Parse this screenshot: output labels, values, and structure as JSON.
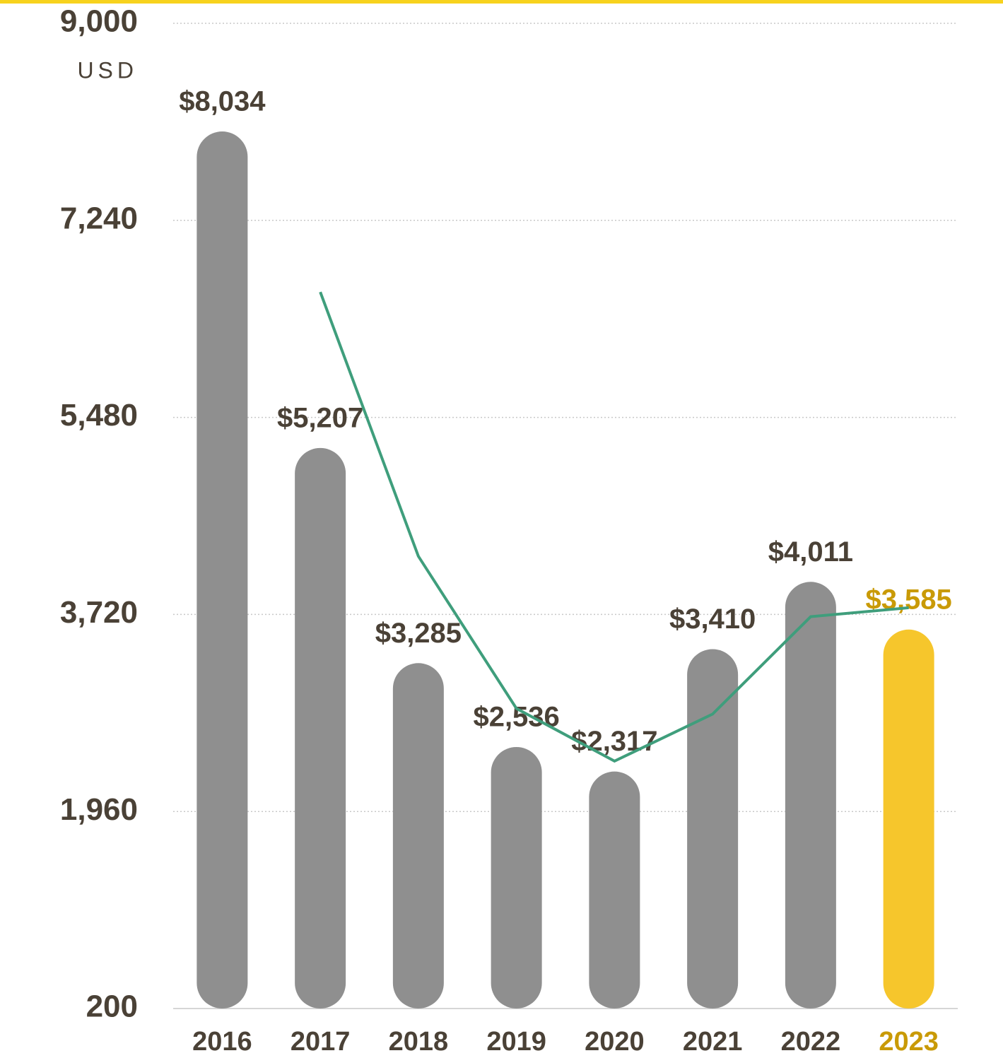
{
  "chart_data": {
    "type": "bar",
    "unit_label": "USD",
    "categories": [
      "2016",
      "2017",
      "2018",
      "2019",
      "2020",
      "2021",
      "2022",
      "2023"
    ],
    "series": [
      {
        "type": "bar",
        "values": [
          8034,
          5207,
          3285,
          2536,
          2317,
          3410,
          4011,
          3585
        ],
        "value_labels": [
          "$8,034",
          "$5,207",
          "$3,285",
          "$2,536",
          "$2,317",
          "$3,410",
          "$4,011",
          "$3,585"
        ],
        "colors": [
          "#8f8f8f",
          "#8f8f8f",
          "#8f8f8f",
          "#8f8f8f",
          "#8f8f8f",
          "#8f8f8f",
          "#8f8f8f",
          "#f6c62c"
        ],
        "label_colors": [
          "#4a4136",
          "#4a4136",
          "#4a4136",
          "#4a4136",
          "#4a4136",
          "#4a4136",
          "#4a4136",
          "#c99a06"
        ]
      },
      {
        "type": "line",
        "color": "#3f9e7c",
        "values": [
          null,
          6600,
          4240,
          2880,
          2410,
          2830,
          3700,
          3780
        ]
      }
    ],
    "ylim": [
      200,
      9000
    ],
    "yticks": [
      {
        "value": 200,
        "label": "200"
      },
      {
        "value": 1960,
        "label": "1,960"
      },
      {
        "value": 3720,
        "label": "3,720"
      },
      {
        "value": 5480,
        "label": "5,480"
      },
      {
        "value": 7240,
        "label": "7,240"
      },
      {
        "value": 9000,
        "label": "9,000"
      }
    ],
    "grid": true
  }
}
